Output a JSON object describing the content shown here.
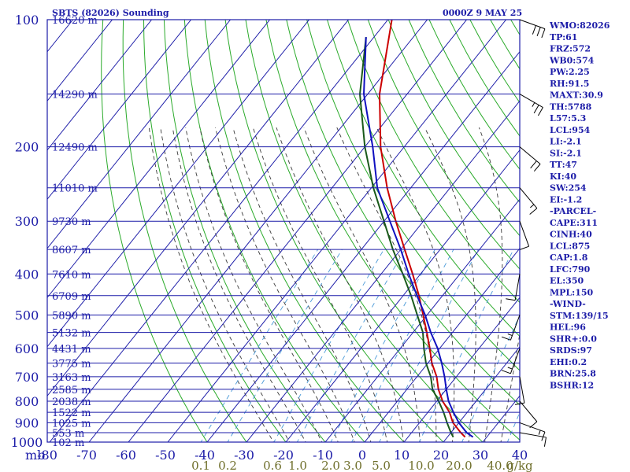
{
  "header": {
    "title": "SBTS (82026) Sounding",
    "time": "0000Z  9 MAY 25"
  },
  "axis": {
    "mb_label": "mb",
    "pressure_levels": [
      100,
      200,
      300,
      400,
      500,
      600,
      700,
      800,
      900,
      1000
    ],
    "temperature_ticks": [
      -80,
      -70,
      -60,
      -50,
      -40,
      -30,
      -20,
      -10,
      0,
      10,
      20,
      30,
      40
    ],
    "mixing_ratio_labels": [
      "0.1",
      "0.2",
      "0.6",
      "1.0",
      "2.0",
      "3.0",
      "5.0",
      "10.0",
      "20.0",
      "40.0",
      "g/kg"
    ]
  },
  "heights": [
    {
      "p": 100,
      "label": "16620 m"
    },
    {
      "p": 150,
      "label": "14290 m"
    },
    {
      "p": 200,
      "label": "12490 m"
    },
    {
      "p": 250,
      "label": "11010 m"
    },
    {
      "p": 300,
      "label": "9730 m"
    },
    {
      "p": 350,
      "label": "8607 m"
    },
    {
      "p": 400,
      "label": "7610 m"
    },
    {
      "p": 450,
      "label": "6709 m"
    },
    {
      "p": 500,
      "label": "5890 m"
    },
    {
      "p": 550,
      "label": "5132 m"
    },
    {
      "p": 600,
      "label": "4431 m"
    },
    {
      "p": 650,
      "label": "3775 m"
    },
    {
      "p": 700,
      "label": "3163 m"
    },
    {
      "p": 750,
      "label": "2585 m"
    },
    {
      "p": 800,
      "label": "2038 m"
    },
    {
      "p": 850,
      "label": "1522 m"
    },
    {
      "p": 900,
      "label": "1025 m"
    },
    {
      "p": 950,
      "label": "553 m"
    },
    {
      "p": 1000,
      "label": "102 m"
    }
  ],
  "indices": [
    "WMO:82026",
    "TP:61",
    "FRZ:572",
    "WB0:574",
    "PW:2.25",
    "RH:91.5",
    "MAXT:30.9",
    "TH:5788",
    "L57:5.3",
    "LCL:954",
    "LI:-2.1",
    "SI:-2.1",
    "TT:47",
    "KI:40",
    "SW:254",
    "EI:-1.2",
    "-PARCEL-",
    "CAPE:311",
    "CINH:40",
    "LCL:875",
    "CAP:1.8",
    "LFC:790",
    "EL:350",
    "MPL:150",
    "-WIND-",
    "STM:139/15",
    "HEL:96",
    "SHR+:0.0",
    "SRDS:97",
    "EHI:0.2",
    "BRN:25.8",
    "BSHR:12"
  ],
  "colors": {
    "frame": "#1c1ca8",
    "dry_adiabat": "#2aaa2a",
    "moist_adiabat": "#3a3a3a",
    "mixing_ratio": "#4a9ad8",
    "temperature": "#cc0000",
    "dewpoint": "#1a5a1a",
    "parcel": "#1010c0",
    "mixing_label": "#6e6e2a"
  },
  "chart_data": {
    "type": "line",
    "x_unit": "degC",
    "y_unit": "hPa",
    "y_scale": "log",
    "ylim": [
      1000,
      100
    ],
    "xlim": [
      -80,
      40
    ],
    "series": [
      {
        "name": "",
        "key": "temperature",
        "points": [
          [
            973,
            24.5
          ],
          [
            950,
            22.5
          ],
          [
            900,
            18.5
          ],
          [
            850,
            15.5
          ],
          [
            800,
            11.5
          ],
          [
            750,
            8.0
          ],
          [
            700,
            5.0
          ],
          [
            650,
            1.0
          ],
          [
            600,
            -2.5
          ],
          [
            550,
            -6.5
          ],
          [
            500,
            -11.0
          ],
          [
            450,
            -16.0
          ],
          [
            400,
            -22.0
          ],
          [
            350,
            -29.0
          ],
          [
            300,
            -37.0
          ],
          [
            250,
            -46.0
          ],
          [
            200,
            -56.0
          ],
          [
            150,
            -67.0
          ],
          [
            100,
            -79.0
          ]
        ]
      },
      {
        "name": "",
        "key": "dewpoint",
        "points": [
          [
            973,
            21.5
          ],
          [
            950,
            20.0
          ],
          [
            900,
            17.0
          ],
          [
            850,
            14.0
          ],
          [
            800,
            10.5
          ],
          [
            750,
            6.5
          ],
          [
            700,
            3.5
          ],
          [
            650,
            -0.5
          ],
          [
            600,
            -4.0
          ],
          [
            550,
            -7.5
          ],
          [
            500,
            -12.5
          ],
          [
            450,
            -18.0
          ],
          [
            400,
            -24.5
          ],
          [
            350,
            -32.0
          ],
          [
            300,
            -40.0
          ],
          [
            250,
            -49.5
          ],
          [
            200,
            -60.0
          ],
          [
            150,
            -72.0
          ],
          [
            110,
            -82.0
          ]
        ]
      },
      {
        "name": "",
        "key": "parcel",
        "points": [
          [
            973,
            26.5
          ],
          [
            950,
            24.0
          ],
          [
            900,
            20.0
          ],
          [
            850,
            16.5
          ],
          [
            800,
            13.0
          ],
          [
            750,
            10.0
          ],
          [
            700,
            7.0
          ],
          [
            650,
            3.5
          ],
          [
            600,
            -0.5
          ],
          [
            550,
            -5.5
          ],
          [
            500,
            -10.5
          ],
          [
            450,
            -16.5
          ],
          [
            400,
            -23.0
          ],
          [
            350,
            -30.0
          ],
          [
            300,
            -38.5
          ],
          [
            250,
            -48.5
          ],
          [
            200,
            -58.0
          ],
          [
            150,
            -71.0
          ],
          [
            110,
            -82.0
          ]
        ]
      }
    ],
    "wind_barbs": [
      {
        "p": 100,
        "dir": 110,
        "kt": 30
      },
      {
        "p": 150,
        "dir": 120,
        "kt": 25
      },
      {
        "p": 200,
        "dir": 130,
        "kt": 20
      },
      {
        "p": 250,
        "dir": 140,
        "kt": 15
      },
      {
        "p": 300,
        "dir": 160,
        "kt": 10
      },
      {
        "p": 400,
        "dir": 190,
        "kt": 10
      },
      {
        "p": 500,
        "dir": 200,
        "kt": 15
      },
      {
        "p": 600,
        "dir": 200,
        "kt": 15
      },
      {
        "p": 700,
        "dir": 170,
        "kt": 10
      },
      {
        "p": 800,
        "dir": 140,
        "kt": 10
      },
      {
        "p": 900,
        "dir": 110,
        "kt": 15
      },
      {
        "p": 950,
        "dir": 100,
        "kt": 10
      }
    ]
  }
}
